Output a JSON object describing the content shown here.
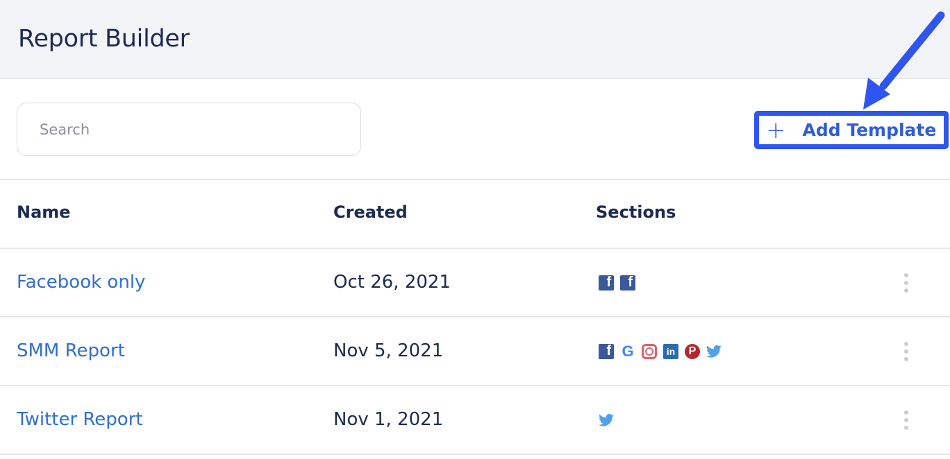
{
  "header": {
    "title": "Report Builder"
  },
  "search": {
    "placeholder": "Search",
    "value": ""
  },
  "toolbar": {
    "add_label": "Add Template",
    "add_icon": "plus-icon",
    "highlight_color": "#2f55f0"
  },
  "table": {
    "columns": [
      "Name",
      "Created",
      "Sections"
    ],
    "rows": [
      {
        "name": "Facebook only",
        "created": "Oct 26, 2021",
        "sections": [
          "facebook",
          "facebook"
        ]
      },
      {
        "name": "SMM Report",
        "created": "Nov 5, 2021",
        "sections": [
          "facebook",
          "google",
          "instagram",
          "linkedin",
          "pinterest",
          "twitter"
        ]
      },
      {
        "name": "Twitter Report",
        "created": "Nov 1, 2021",
        "sections": [
          "twitter"
        ]
      }
    ]
  }
}
